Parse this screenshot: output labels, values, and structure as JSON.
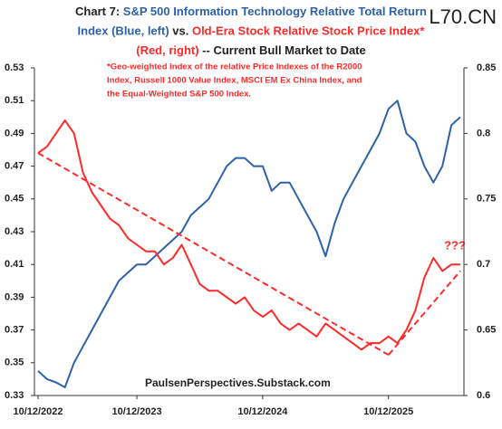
{
  "chart_data": {
    "type": "line",
    "watermark": "L70.CN",
    "title_lines": [
      [
        {
          "text": "Chart 7: ",
          "color": "#222222"
        },
        {
          "text": "S&P 500 Information Technology Relative Total Return",
          "color": "#2e62a8"
        }
      ],
      [
        {
          "text": "Index (Blue, left) ",
          "color": "#2e62a8"
        },
        {
          "text": "vs. ",
          "color": "#222222"
        },
        {
          "text": "Old-Era Stock Relative Stock Price Index*",
          "color": "#ff2a2a"
        }
      ],
      [
        {
          "text": "(Red, right) ",
          "color": "#ff2a2a"
        },
        {
          "text": "-- Current Bull Market to Date",
          "color": "#222222"
        }
      ]
    ],
    "footnote": [
      "*Geo-weighted index of the relative Price Indexes of the R2000",
      "Index, Russell 1000 Value Index, MSCI EM Ex China Index, and",
      "the Equal-Weighted S&P 500 Index."
    ],
    "source": "PaulsenPerspectives.Substack.com",
    "annotation": "???",
    "categories": [
      "10/12/2022",
      null,
      null,
      null,
      null,
      null,
      null,
      null,
      null,
      null,
      null,
      "10/12/2023",
      null,
      null,
      null,
      null,
      null,
      null,
      null,
      null,
      null,
      null,
      null,
      null,
      null,
      "10/12/2024",
      null,
      null,
      null,
      null,
      null,
      null,
      null,
      null,
      null,
      null,
      null,
      null,
      null,
      "10/12/2025",
      null,
      null,
      null,
      null,
      null,
      null,
      null,
      null
    ],
    "ylim": [
      0.33,
      0.53
    ],
    "yticks": [
      0.33,
      0.35,
      0.37,
      0.39,
      0.41,
      0.43,
      0.45,
      0.47,
      0.49,
      0.51,
      0.53
    ],
    "y2lim": [
      0.6,
      0.85
    ],
    "y2ticks": [
      0.6,
      0.65,
      0.7,
      0.75,
      0.8,
      0.85
    ],
    "series": [
      {
        "color": "#2e62a8",
        "values": [
          0.345,
          0.34,
          0.338,
          0.335,
          0.35,
          0.36,
          0.37,
          0.38,
          0.39,
          0.4,
          0.405,
          0.41,
          0.41,
          0.415,
          0.42,
          0.425,
          0.43,
          0.44,
          0.445,
          0.45,
          0.46,
          0.47,
          0.475,
          0.475,
          0.47,
          0.47,
          0.455,
          0.46,
          0.46,
          0.45,
          0.44,
          0.43,
          0.415,
          0.435,
          0.45,
          0.46,
          0.47,
          0.48,
          0.49,
          0.505,
          0.51,
          0.49,
          0.485,
          0.47,
          0.46,
          0.47,
          0.495,
          0.5
        ]
      },
      {
        "color": "#ff2a2a",
        "axis": "y2",
        "values": [
          0.785,
          0.79,
          0.8,
          0.81,
          0.8,
          0.77,
          0.755,
          0.745,
          0.735,
          0.73,
          0.72,
          0.715,
          0.71,
          0.71,
          0.7,
          0.705,
          0.715,
          0.7,
          0.685,
          0.68,
          0.68,
          0.675,
          0.67,
          0.675,
          0.665,
          0.66,
          0.665,
          0.655,
          0.65,
          0.655,
          0.65,
          0.645,
          0.655,
          0.65,
          0.645,
          0.64,
          0.635,
          0.64,
          0.64,
          0.645,
          0.64,
          0.65,
          0.665,
          0.69,
          0.705,
          0.695,
          0.7,
          0.7
        ]
      }
    ],
    "trend_lines": [
      {
        "color": "#ff2a2a",
        "axis": "y2",
        "x": [
          0,
          39
        ],
        "values": [
          0.785,
          0.631
        ]
      },
      {
        "color": "#ff2a2a",
        "axis": "y2",
        "x": [
          39,
          47
        ],
        "values": [
          0.631,
          0.695
        ]
      }
    ]
  }
}
